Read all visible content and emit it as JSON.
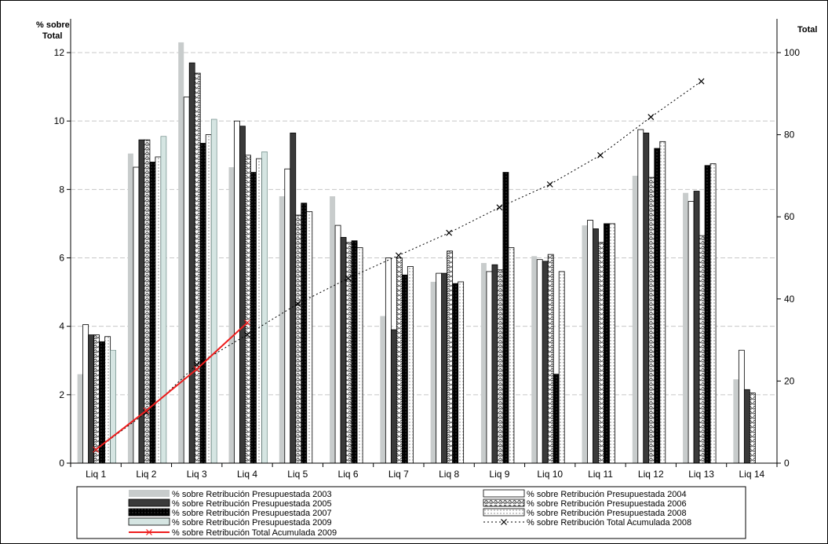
{
  "chart_data": {
    "type": "bar",
    "y_axis_left": {
      "label_line1": "% sobre",
      "label_line2": "Total",
      "ylim": [
        0,
        13
      ],
      "ticks": [
        "0",
        "2",
        "4",
        "6",
        "8",
        "10",
        "12"
      ]
    },
    "y_axis_right": {
      "label": "Total",
      "ylim": [
        0,
        100
      ],
      "ticks": [
        "0",
        "20",
        "40",
        "60",
        "80",
        "100"
      ]
    },
    "grid": true,
    "categories": [
      "Liq 1",
      "Liq 2",
      "Liq 3",
      "Liq 4",
      "Liq 5",
      "Liq 6",
      "Liq 7",
      "Liq 8",
      "Liq 9",
      "Liq 10",
      "Liq 11",
      "Liq 12",
      "Liq 13",
      "Liq 14"
    ],
    "series": [
      {
        "name": "% sobre Retribución Presupuestada 2003",
        "style": "light-gray",
        "color": "#c8cccc",
        "values": [
          2.6,
          9.05,
          12.3,
          8.65,
          7.8,
          7.8,
          4.3,
          5.3,
          5.85,
          6.05,
          6.95,
          8.4,
          7.9,
          2.45
        ]
      },
      {
        "name": "% sobre Retribución Presupuestada 2004",
        "style": "white",
        "color": "#ffffff",
        "values": [
          4.05,
          8.65,
          10.7,
          10.0,
          8.6,
          6.95,
          6.0,
          5.55,
          5.6,
          5.95,
          7.1,
          9.75,
          7.65,
          3.3
        ]
      },
      {
        "name": "% sobre Retribución Presupuestada 2005",
        "style": "dark-gray",
        "color": "#3a3a3a",
        "values": [
          3.75,
          9.45,
          11.7,
          9.85,
          9.65,
          6.6,
          3.9,
          5.55,
          5.8,
          5.9,
          6.85,
          9.65,
          7.95,
          2.15
        ]
      },
      {
        "name": "% sobre Retribución Presupuestada 2006",
        "style": "hatched",
        "color": "#999999",
        "values": [
          3.75,
          9.45,
          11.4,
          9.0,
          7.25,
          6.45,
          6.0,
          6.2,
          5.65,
          6.1,
          6.45,
          8.35,
          6.65,
          2.05
        ]
      },
      {
        "name": "% sobre Retribución Presupuestada 2007",
        "style": "black-dotted",
        "color": "#000000",
        "values": [
          3.55,
          8.8,
          9.35,
          8.5,
          7.6,
          6.5,
          5.5,
          5.25,
          8.5,
          2.6,
          7.0,
          9.2,
          8.7,
          null
        ]
      },
      {
        "name": "% sobre Retribución Presupuestada 2008",
        "style": "white-dotted",
        "color": "#f4f4f4",
        "values": [
          3.7,
          8.95,
          9.6,
          8.9,
          7.35,
          6.3,
          5.75,
          5.3,
          6.3,
          5.6,
          7.0,
          9.4,
          8.75,
          null
        ]
      },
      {
        "name": "% sobre Retribución Presupuestada 2009",
        "style": "pale-teal",
        "color": "#d5e5e2",
        "values": [
          3.3,
          9.55,
          10.05,
          9.1,
          null,
          null,
          null,
          null,
          null,
          null,
          null,
          null,
          null,
          null
        ]
      }
    ],
    "lines": [
      {
        "name": "% sobre Retribución Total Acumulada 2008",
        "axis": "right",
        "color": "#000000",
        "style": "dotted-x",
        "values": [
          3.3,
          12.3,
          24.0,
          31.3,
          38.8,
          45.0,
          50.6,
          56.1,
          62.3,
          67.9,
          75.0,
          84.3,
          93.0,
          null
        ]
      },
      {
        "name": "% sobre Retribución Total Acumulada 2009",
        "axis": "right",
        "color": "#ee1c1c",
        "style": "solid-x",
        "values": [
          3.3,
          12.8,
          22.9,
          34.2,
          null,
          null,
          null,
          null,
          null,
          null,
          null,
          null,
          null,
          null
        ]
      }
    ],
    "legend": {
      "position": "bottom",
      "layout_order": [
        "% sobre Retribución Presupuestada 2003",
        "% sobre Retribución Presupuestada 2004",
        "% sobre Retribución Presupuestada 2005",
        "% sobre Retribución Presupuestada 2006",
        "% sobre Retribución Presupuestada 2007",
        "% sobre Retribución Presupuestada 2008",
        "% sobre Retribución Presupuestada 2009",
        "% sobre Retribución Total Acumulada 2008",
        "% sobre Retribución Total Acumulada 2009"
      ]
    }
  }
}
